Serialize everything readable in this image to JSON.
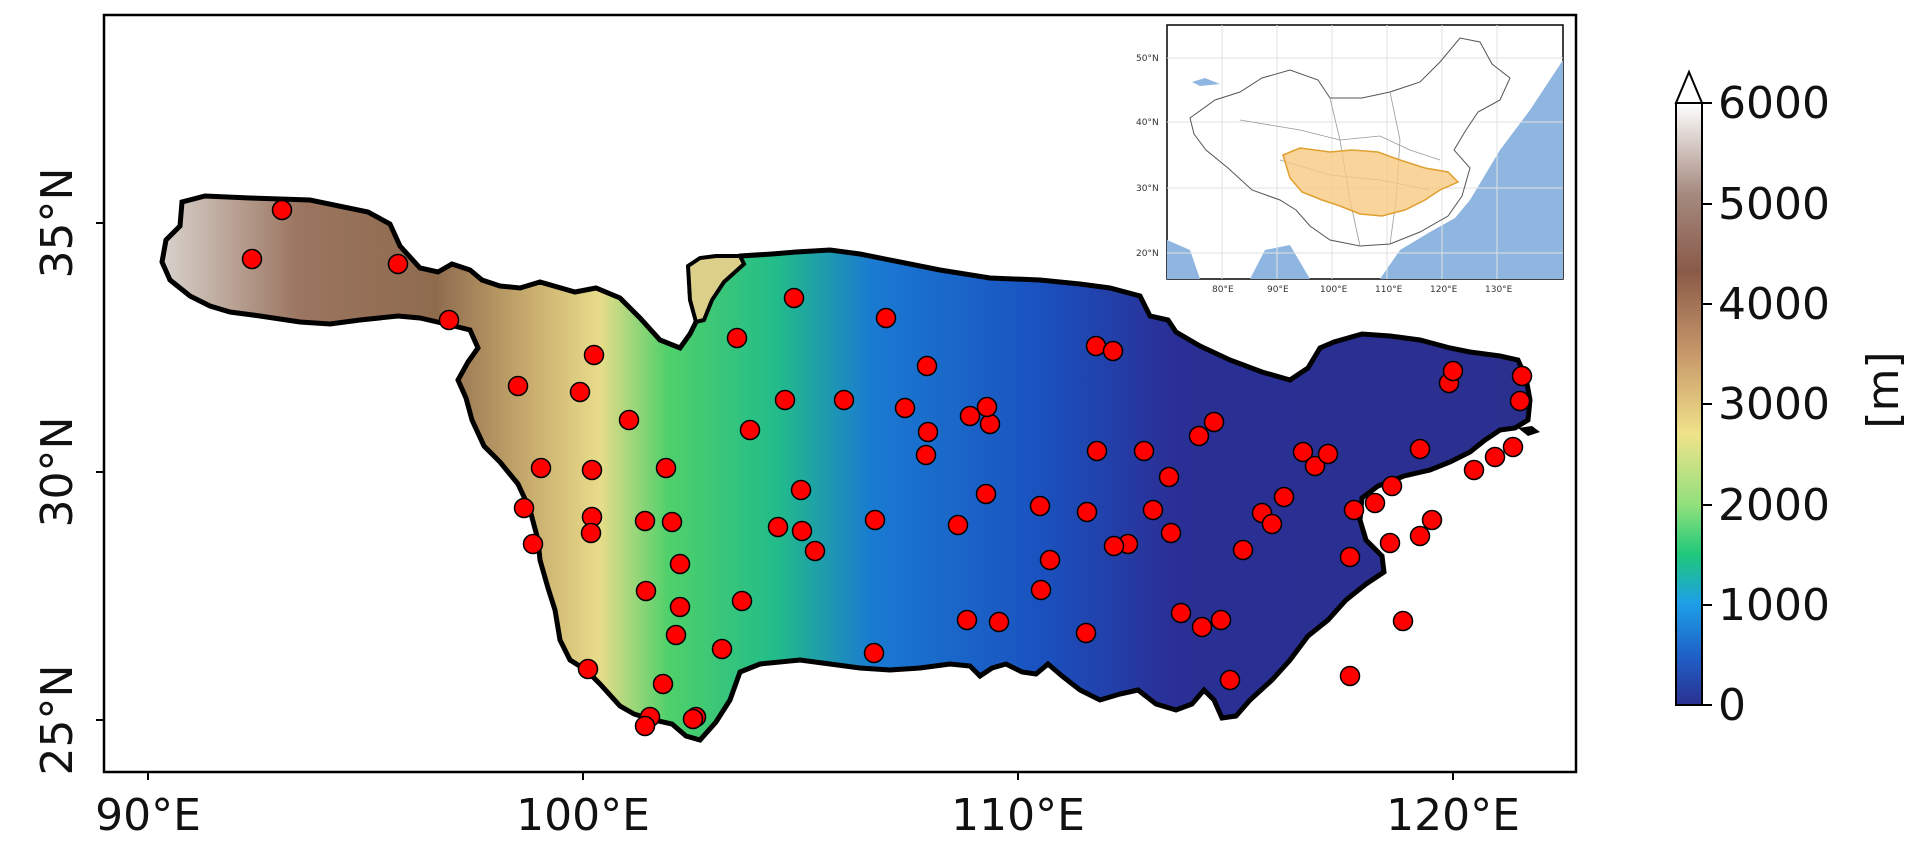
{
  "map": {
    "x_ticks": [
      "90°E",
      "100°E",
      "110°E",
      "120°E"
    ],
    "y_ticks": [
      "25°N",
      "30°N",
      "35°N"
    ]
  },
  "colorbar": {
    "label": "[m]",
    "ticks": [
      "0",
      "1000",
      "2000",
      "3000",
      "4000",
      "5000",
      "6000"
    ],
    "range": [
      0,
      6000
    ],
    "extend": "max",
    "colors": [
      "#2b3190",
      "#1f5fc6",
      "#1ea0e6",
      "#1fc87a",
      "#6fe07c",
      "#f0e28a",
      "#c89a6a",
      "#8a5a48",
      "#a58a80",
      "#ffffff"
    ]
  },
  "inset": {
    "x_ticks": [
      "80°E",
      "90°E",
      "100°E",
      "110°E",
      "120°E",
      "130°E"
    ],
    "y_ticks": [
      "50°N",
      "40°N",
      "30°N",
      "20°N"
    ],
    "basin_color": "#f7c982",
    "ocean_color": "#8fb6e0"
  },
  "markers": {
    "color": "#ff0000",
    "count": 96
  }
}
